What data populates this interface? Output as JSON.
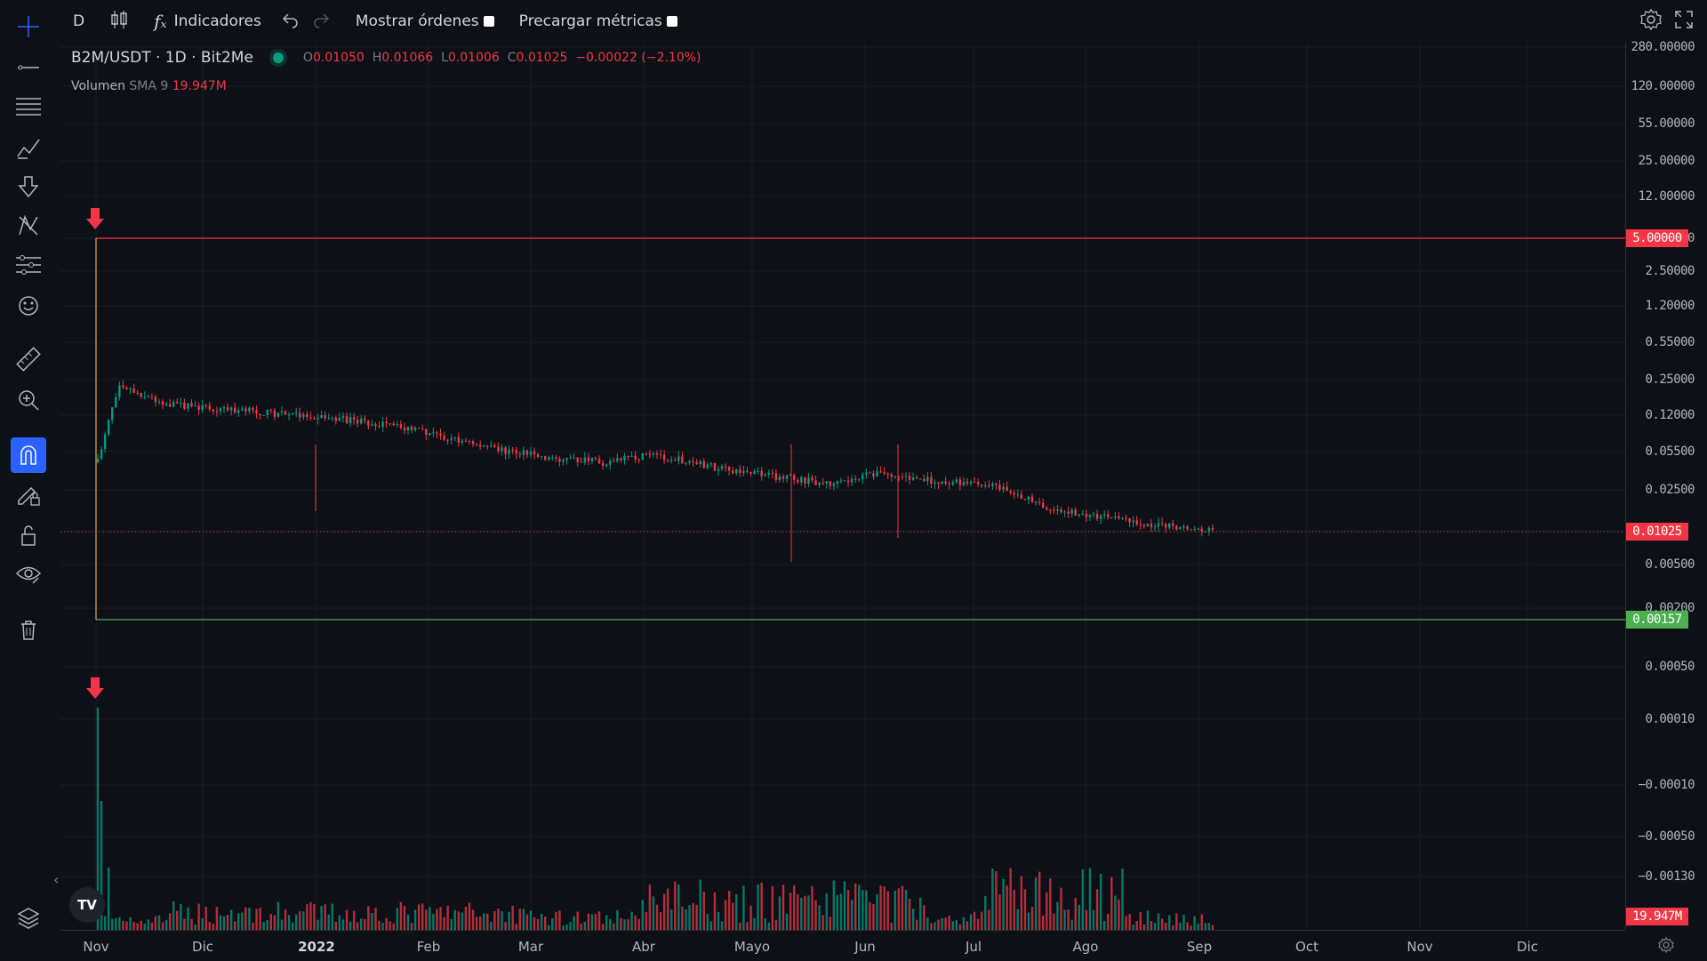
{
  "toolbar": {
    "interval": "D",
    "indicators_label": "Indicadores",
    "show_orders_label": "Mostrar órdenes",
    "preload_metrics_label": "Precargar métricas"
  },
  "legend": {
    "symbol": "B2M/USDT · 1D · Bit2Me",
    "status_color": "#089981",
    "ohlc": {
      "o_label": "O",
      "o_value": "0.01050",
      "h_label": "H",
      "h_value": "0.01066",
      "l_label": "L",
      "l_value": "0.01006",
      "c_label": "C",
      "c_value": "0.01025",
      "change": "−0.00022 (−2.10%)"
    },
    "volume": {
      "label": "Volumen",
      "sma": "SMA 9",
      "value": "19.947M"
    }
  },
  "price_axis": {
    "labels": [
      "280.00000",
      "120.00000",
      "55.00000",
      "25.00000",
      "12.00000",
      "5.00000",
      "2.50000",
      "1.20000",
      "0.55000",
      "0.25000",
      "0.12000",
      "0.05500",
      "0.02500",
      "0.01025",
      "0.00500",
      "0.00200",
      "0.00050",
      "0.00010",
      "−0.00010",
      "−0.00050",
      "−0.00130"
    ],
    "tag_upper": "5.00000",
    "tag_current": "0.01025",
    "tag_lower": "0.00157",
    "tag_volume": "19.947M"
  },
  "time_axis": {
    "labels": [
      "Nov",
      "Dic",
      "2022",
      "Feb",
      "Mar",
      "Abr",
      "Mayo",
      "Jun",
      "Jul",
      "Ago",
      "Sep",
      "Oct",
      "Nov",
      "Dic"
    ]
  },
  "colors": {
    "up": "#089981",
    "down": "#f23645",
    "upper_line": "#f23645",
    "lower_line": "#4caf50",
    "accent": "#2962ff"
  },
  "logo_text": "TV",
  "icons": [
    "crosshair-icon",
    "trend-line-icon",
    "horizontal-lines-icon",
    "brush-icon",
    "arrow-down-icon",
    "pattern-icon",
    "fib-icon",
    "emoji-icon",
    "ruler-icon",
    "zoom-in-icon",
    "magnet-icon",
    "lock-pencil-icon",
    "lock-icon",
    "eye-icon",
    "trash-icon",
    "layers-icon",
    "settings-icon",
    "fullscreen-icon",
    "undo-icon",
    "redo-icon"
  ]
}
